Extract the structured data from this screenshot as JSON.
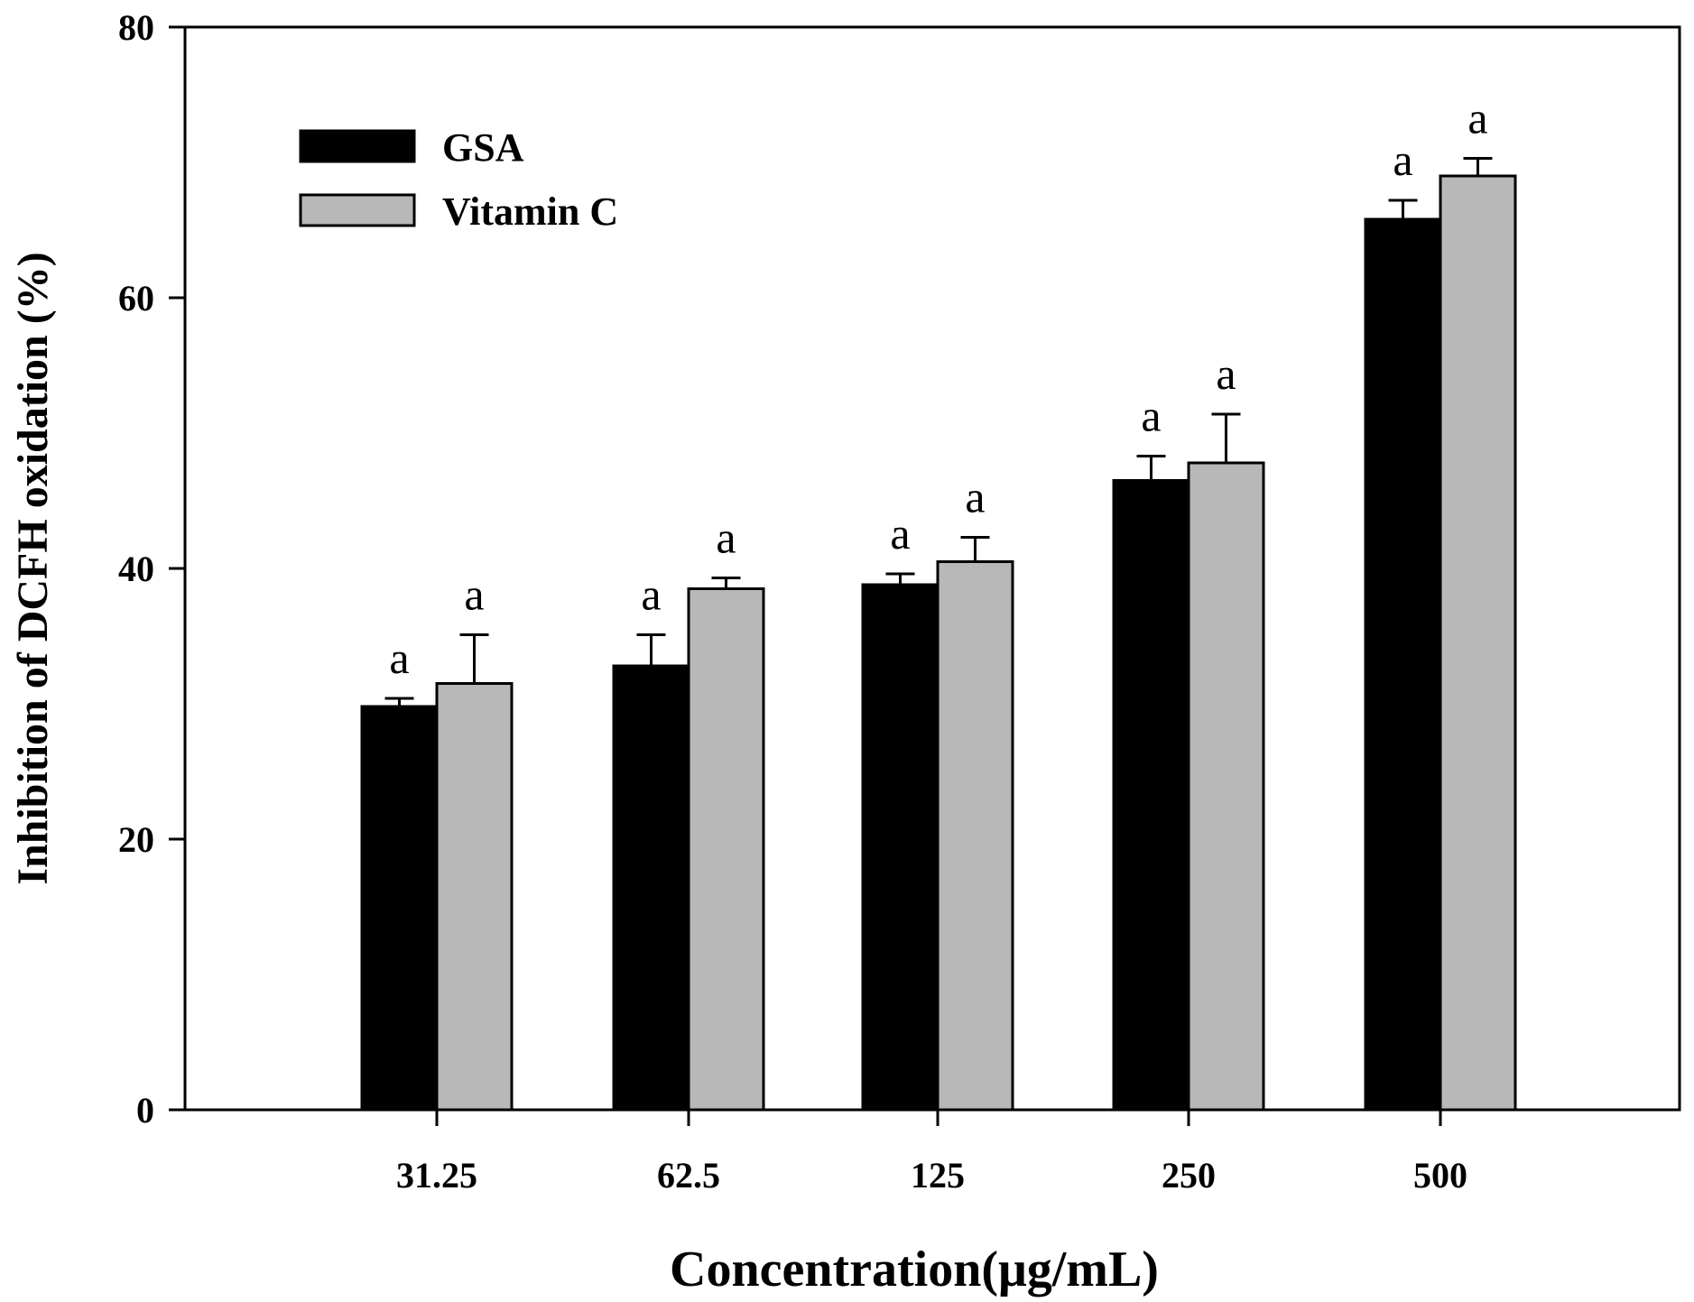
{
  "chart_data": {
    "type": "bar",
    "title": "",
    "xlabel": "Concentration(μg/mL)",
    "ylabel": "Inhibition of DCFH oxidation (%)",
    "ylim": [
      0,
      80
    ],
    "yticks": [
      0,
      20,
      40,
      60,
      80
    ],
    "categories": [
      "31.25",
      "62.5",
      "125",
      "250",
      "500"
    ],
    "legend_position": "top-left",
    "series": [
      {
        "name": "GSA",
        "color": "#000000",
        "values": [
          29.8,
          32.8,
          38.8,
          46.5,
          65.8
        ],
        "errors": [
          0.6,
          2.3,
          0.8,
          1.8,
          1.4
        ],
        "annotations": [
          "a",
          "a",
          "a",
          "a",
          "a"
        ]
      },
      {
        "name": "Vitamin C",
        "color": "#b8b8b8",
        "values": [
          31.5,
          38.5,
          40.5,
          47.8,
          69.0
        ],
        "errors": [
          3.6,
          0.8,
          1.8,
          3.6,
          1.3
        ],
        "annotations": [
          "a",
          "a",
          "a",
          "a",
          "a"
        ]
      }
    ]
  }
}
